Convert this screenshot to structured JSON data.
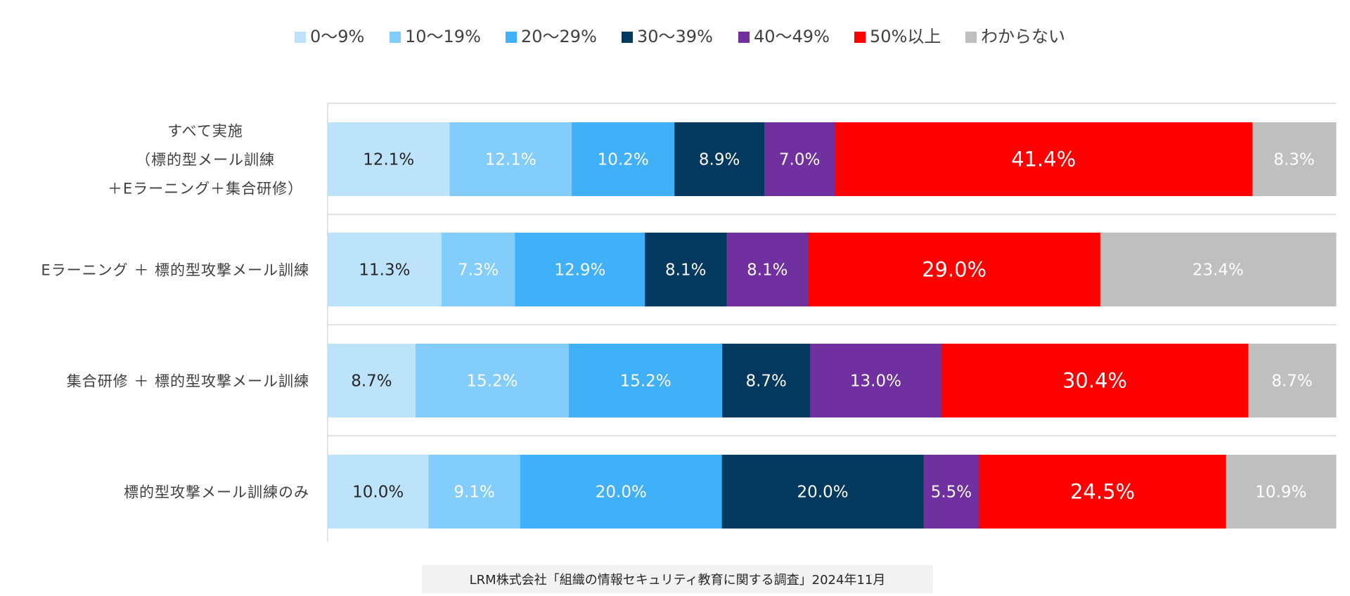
{
  "chart_data": {
    "type": "bar",
    "orientation": "horizontal",
    "stacked": true,
    "percent_stacked": true,
    "legend_position": "top",
    "grid": false,
    "categories": [
      [
        "すべて実施",
        "（標的型メール訓練",
        "＋Eラーニング＋集合研修）"
      ],
      [
        "Eラーニング ＋ 標的型攻撃メール訓練"
      ],
      [
        "集合研修 ＋ 標的型攻撃メール訓練"
      ],
      [
        "標的型攻撃メール訓練のみ"
      ]
    ],
    "series": [
      {
        "name": "0～9%",
        "color": "#bde3fb",
        "text_color": "#262626",
        "values": [
          12.1,
          11.3,
          8.7,
          10.0
        ]
      },
      {
        "name": "10～19%",
        "color": "#82cdfb",
        "text_color": "#ffffff",
        "values": [
          12.1,
          7.3,
          15.2,
          9.1
        ]
      },
      {
        "name": "20～29%",
        "color": "#40b1f9",
        "text_color": "#ffffff",
        "values": [
          10.2,
          12.9,
          15.2,
          20.0
        ]
      },
      {
        "name": "30～39%",
        "color": "#03385f",
        "text_color": "#ffffff",
        "values": [
          8.9,
          8.1,
          8.7,
          20.0
        ]
      },
      {
        "name": "40～49%",
        "color": "#7030a0",
        "text_color": "#ffffff",
        "values": [
          7.0,
          8.1,
          13.0,
          5.5
        ]
      },
      {
        "name": "50%以上",
        "color": "#ff0000",
        "text_color": "#ffffff",
        "values": [
          41.4,
          29.0,
          30.4,
          24.5
        ]
      },
      {
        "name": "わからない",
        "color": "#bfbfbf",
        "text_color": "#ffffff",
        "values": [
          8.3,
          23.4,
          8.7,
          10.9
        ]
      }
    ],
    "value_format": "%",
    "source": "LRM株式会社「組織の情報セキュリティ教育に関する調査」2024年11月"
  }
}
